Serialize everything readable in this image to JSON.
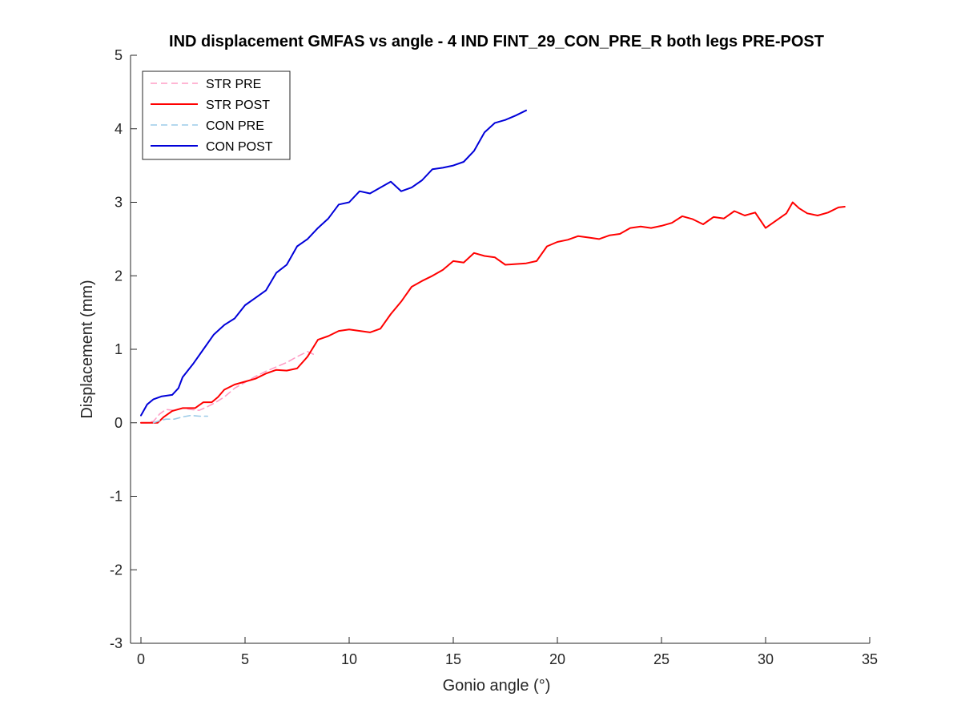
{
  "chart_data": {
    "type": "line",
    "title": "IND displacement GMFAS vs angle - 4 IND FINT_29_CON_PRE_R both legs PRE-POST",
    "xlabel": "Gonio angle (°)",
    "ylabel": "Displacement (mm)",
    "xlim": [
      -0.5,
      35
    ],
    "ylim": [
      -3,
      5
    ],
    "xticks": [
      0,
      5,
      10,
      15,
      20,
      25,
      30,
      35
    ],
    "yticks": [
      -3,
      -2,
      -1,
      0,
      1,
      2,
      3,
      4,
      5
    ],
    "grid": false,
    "legend_position": "top-left",
    "series": [
      {
        "name": "STR PRE",
        "color": "#ff9ec6",
        "dashed": true,
        "x": [
          0,
          0.3,
          0.6,
          0.9,
          1.2,
          1.6,
          2.0,
          2.4,
          2.8,
          3.2,
          3.6,
          4.0,
          4.5,
          5.0,
          5.5,
          6.0,
          6.5,
          7.0,
          7.5,
          8.0,
          8.3
        ],
        "y": [
          0.0,
          0.0,
          0.02,
          0.12,
          0.18,
          0.17,
          0.2,
          0.18,
          0.17,
          0.22,
          0.28,
          0.35,
          0.47,
          0.55,
          0.63,
          0.7,
          0.76,
          0.82,
          0.9,
          0.97,
          0.93
        ]
      },
      {
        "name": "STR POST",
        "color": "#ff0000",
        "dashed": false,
        "x": [
          0,
          0.8,
          1.1,
          1.5,
          2.0,
          2.6,
          3.0,
          3.4,
          3.7,
          4.0,
          4.5,
          5.0,
          5.5,
          6.0,
          6.5,
          7.0,
          7.5,
          8.0,
          8.5,
          9.0,
          9.5,
          10.0,
          11.0,
          11.5,
          12.0,
          12.5,
          13.0,
          13.5,
          14.0,
          14.5,
          15.0,
          15.5,
          16.0,
          16.5,
          17.0,
          17.5,
          18.0,
          18.5,
          19.0,
          19.5,
          20.0,
          20.5,
          21.0,
          21.5,
          22.0,
          22.5,
          23.0,
          23.5,
          24.0,
          24.5,
          25.0,
          25.5,
          26.0,
          26.5,
          27.0,
          27.5,
          28.0,
          28.5,
          29.0,
          29.5,
          30.0,
          30.5,
          31.0,
          31.3,
          31.6,
          32.0,
          32.5,
          33.0,
          33.5,
          33.8
        ],
        "y": [
          0.0,
          0.0,
          0.08,
          0.16,
          0.2,
          0.2,
          0.28,
          0.28,
          0.35,
          0.45,
          0.52,
          0.56,
          0.6,
          0.67,
          0.72,
          0.71,
          0.74,
          0.9,
          1.13,
          1.18,
          1.25,
          1.27,
          1.23,
          1.28,
          1.48,
          1.65,
          1.85,
          1.93,
          2.0,
          2.08,
          2.2,
          2.18,
          2.31,
          2.27,
          2.25,
          2.15,
          2.16,
          2.17,
          2.2,
          2.4,
          2.46,
          2.49,
          2.54,
          2.52,
          2.5,
          2.55,
          2.57,
          2.65,
          2.67,
          2.65,
          2.68,
          2.72,
          2.81,
          2.77,
          2.7,
          2.8,
          2.78,
          2.88,
          2.82,
          2.86,
          2.65,
          2.75,
          2.85,
          3.0,
          2.92,
          2.85,
          2.82,
          2.86,
          2.93,
          2.94
        ]
      },
      {
        "name": "CON PRE",
        "color": "#9ccbe8",
        "dashed": true,
        "x": [
          0.6,
          0.9,
          1.2,
          1.6,
          2.0,
          2.4,
          2.8,
          3.2
        ],
        "y": [
          0.0,
          0.03,
          0.05,
          0.05,
          0.08,
          0.1,
          0.09,
          0.09
        ]
      },
      {
        "name": "CON POST",
        "color": "#0000d9",
        "dashed": false,
        "x": [
          0,
          0.3,
          0.6,
          1.0,
          1.5,
          1.8,
          2.0,
          2.5,
          3.0,
          3.5,
          4.0,
          4.5,
          5.0,
          5.5,
          6.0,
          6.5,
          7.0,
          7.5,
          8.0,
          8.5,
          9.0,
          9.5,
          10.0,
          10.5,
          11.0,
          11.5,
          12.0,
          12.5,
          13.0,
          13.5,
          14.0,
          14.5,
          15.0,
          15.5,
          16.0,
          16.5,
          17.0,
          17.5,
          18.0,
          18.5
        ],
        "y": [
          0.1,
          0.25,
          0.32,
          0.36,
          0.38,
          0.47,
          0.62,
          0.8,
          1.0,
          1.2,
          1.33,
          1.42,
          1.6,
          1.7,
          1.8,
          2.04,
          2.15,
          2.4,
          2.5,
          2.65,
          2.78,
          2.97,
          3.0,
          3.15,
          3.12,
          3.2,
          3.28,
          3.15,
          3.2,
          3.3,
          3.45,
          3.47,
          3.5,
          3.55,
          3.7,
          3.95,
          4.08,
          4.12,
          4.18,
          4.25
        ]
      }
    ]
  }
}
